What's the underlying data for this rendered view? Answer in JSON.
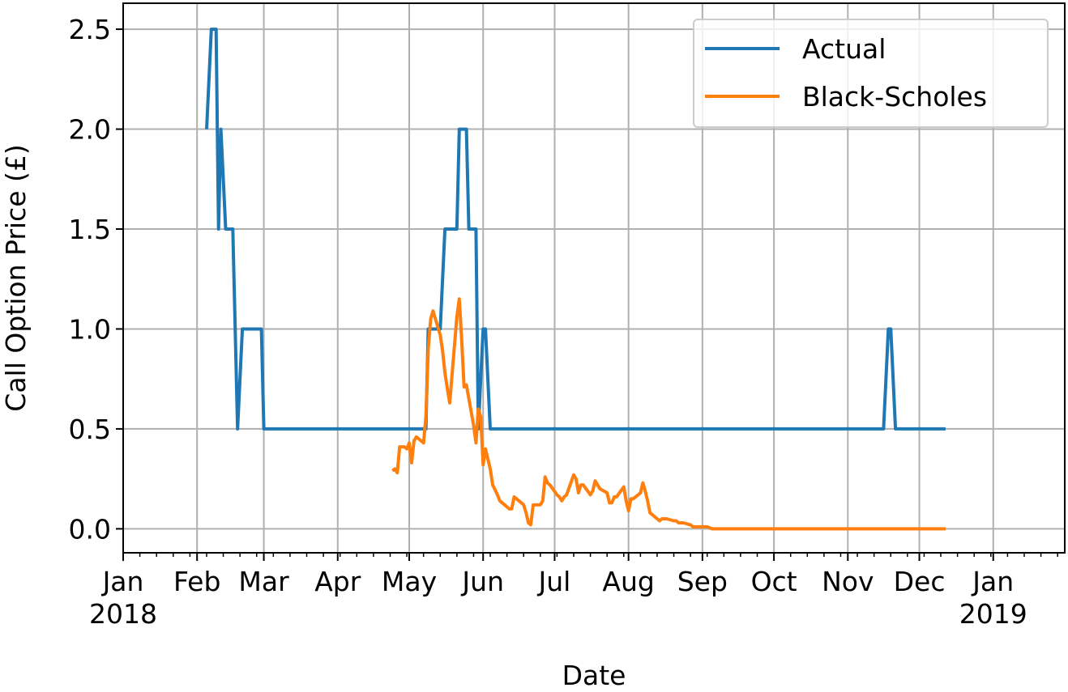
{
  "chart_data": {
    "type": "line",
    "title": "",
    "xlabel": "Date",
    "ylabel": "Call Option Price (£)",
    "x_axis_kind": "date",
    "xlim": [
      "2018-01-01",
      "2019-01-31"
    ],
    "ylim": [
      -0.12,
      2.63
    ],
    "grid": true,
    "legend_position": "top-right",
    "x_tick_labels": [
      {
        "date": "2018-01-01",
        "label": "Jan\n2018"
      },
      {
        "date": "2018-02-01",
        "label": "Feb"
      },
      {
        "date": "2018-03-01",
        "label": "Mar"
      },
      {
        "date": "2018-04-01",
        "label": "Apr"
      },
      {
        "date": "2018-05-01",
        "label": "May"
      },
      {
        "date": "2018-06-01",
        "label": "Jun"
      },
      {
        "date": "2018-07-01",
        "label": "Jul"
      },
      {
        "date": "2018-08-01",
        "label": "Aug"
      },
      {
        "date": "2018-09-01",
        "label": "Sep"
      },
      {
        "date": "2018-10-01",
        "label": "Oct"
      },
      {
        "date": "2018-11-01",
        "label": "Nov"
      },
      {
        "date": "2018-12-01",
        "label": "Dec"
      },
      {
        "date": "2019-01-01",
        "label": "Jan\n2019"
      }
    ],
    "y_ticks": [
      {
        "value": 0.0,
        "label": "0.0"
      },
      {
        "value": 0.5,
        "label": "0.5"
      },
      {
        "value": 1.0,
        "label": "1.0"
      },
      {
        "value": 1.5,
        "label": "1.5"
      },
      {
        "value": 2.0,
        "label": "2.0"
      },
      {
        "value": 2.5,
        "label": "2.5"
      }
    ],
    "series": [
      {
        "name": "Actual",
        "color": "#1f77b4",
        "points": [
          [
            "2018-02-05",
            2.0
          ],
          [
            "2018-02-07",
            2.5
          ],
          [
            "2018-02-09",
            2.5
          ],
          [
            "2018-02-10",
            1.5
          ],
          [
            "2018-02-11",
            2.0
          ],
          [
            "2018-02-13",
            1.5
          ],
          [
            "2018-02-15",
            1.5
          ],
          [
            "2018-02-16",
            1.5
          ],
          [
            "2018-02-18",
            0.5
          ],
          [
            "2018-02-20",
            1.0
          ],
          [
            "2018-02-23",
            1.0
          ],
          [
            "2018-02-28",
            1.0
          ],
          [
            "2018-03-01",
            0.5
          ],
          [
            "2018-05-08",
            0.5
          ],
          [
            "2018-05-09",
            1.0
          ],
          [
            "2018-05-14",
            1.0
          ],
          [
            "2018-05-16",
            1.5
          ],
          [
            "2018-05-21",
            1.5
          ],
          [
            "2018-05-22",
            2.0
          ],
          [
            "2018-05-25",
            2.0
          ],
          [
            "2018-05-26",
            1.5
          ],
          [
            "2018-05-29",
            1.5
          ],
          [
            "2018-05-30",
            0.5
          ],
          [
            "2018-06-01",
            1.0
          ],
          [
            "2018-06-02",
            1.0
          ],
          [
            "2018-06-04",
            0.5
          ],
          [
            "2018-11-16",
            0.5
          ],
          [
            "2018-11-18",
            1.0
          ],
          [
            "2018-11-19",
            1.0
          ],
          [
            "2018-11-21",
            0.5
          ],
          [
            "2018-12-12",
            0.5
          ]
        ]
      },
      {
        "name": "Black-Scholes",
        "color": "#ff7f0e",
        "points": [
          [
            "2018-04-24",
            0.29
          ],
          [
            "2018-04-25",
            0.3
          ],
          [
            "2018-04-26",
            0.28
          ],
          [
            "2018-04-27",
            0.41
          ],
          [
            "2018-04-29",
            0.41
          ],
          [
            "2018-04-30",
            0.4
          ],
          [
            "2018-05-01",
            0.43
          ],
          [
            "2018-05-02",
            0.33
          ],
          [
            "2018-05-03",
            0.44
          ],
          [
            "2018-05-04",
            0.46
          ],
          [
            "2018-05-07",
            0.43
          ],
          [
            "2018-05-08",
            0.56
          ],
          [
            "2018-05-09",
            0.9
          ],
          [
            "2018-05-10",
            1.05
          ],
          [
            "2018-05-11",
            1.09
          ],
          [
            "2018-05-14",
            0.97
          ],
          [
            "2018-05-15",
            0.89
          ],
          [
            "2018-05-16",
            0.78
          ],
          [
            "2018-05-17",
            0.7
          ],
          [
            "2018-05-18",
            0.63
          ],
          [
            "2018-05-21",
            1.06
          ],
          [
            "2018-05-22",
            1.15
          ],
          [
            "2018-05-23",
            0.95
          ],
          [
            "2018-05-24",
            0.71
          ],
          [
            "2018-05-25",
            0.72
          ],
          [
            "2018-05-28",
            0.52
          ],
          [
            "2018-05-29",
            0.43
          ],
          [
            "2018-05-30",
            0.6
          ],
          [
            "2018-05-31",
            0.56
          ],
          [
            "2018-06-01",
            0.32
          ],
          [
            "2018-06-02",
            0.4
          ],
          [
            "2018-06-04",
            0.3
          ],
          [
            "2018-06-05",
            0.22
          ],
          [
            "2018-06-07",
            0.17
          ],
          [
            "2018-06-08",
            0.14
          ],
          [
            "2018-06-11",
            0.11
          ],
          [
            "2018-06-12",
            0.1
          ],
          [
            "2018-06-13",
            0.1
          ],
          [
            "2018-06-14",
            0.16
          ],
          [
            "2018-06-15",
            0.15
          ],
          [
            "2018-06-18",
            0.12
          ],
          [
            "2018-06-19",
            0.08
          ],
          [
            "2018-06-20",
            0.03
          ],
          [
            "2018-06-21",
            0.02
          ],
          [
            "2018-06-22",
            0.12
          ],
          [
            "2018-06-25",
            0.12
          ],
          [
            "2018-06-26",
            0.14
          ],
          [
            "2018-06-27",
            0.26
          ],
          [
            "2018-06-28",
            0.23
          ],
          [
            "2018-06-29",
            0.22
          ],
          [
            "2018-07-02",
            0.17
          ],
          [
            "2018-07-03",
            0.16
          ],
          [
            "2018-07-04",
            0.14
          ],
          [
            "2018-07-05",
            0.16
          ],
          [
            "2018-07-06",
            0.17
          ],
          [
            "2018-07-09",
            0.27
          ],
          [
            "2018-07-10",
            0.25
          ],
          [
            "2018-07-11",
            0.18
          ],
          [
            "2018-07-12",
            0.22
          ],
          [
            "2018-07-13",
            0.22
          ],
          [
            "2018-07-16",
            0.17
          ],
          [
            "2018-07-17",
            0.19
          ],
          [
            "2018-07-18",
            0.24
          ],
          [
            "2018-07-19",
            0.22
          ],
          [
            "2018-07-20",
            0.2
          ],
          [
            "2018-07-23",
            0.18
          ],
          [
            "2018-07-24",
            0.13
          ],
          [
            "2018-07-25",
            0.13
          ],
          [
            "2018-07-26",
            0.16
          ],
          [
            "2018-07-27",
            0.16
          ],
          [
            "2018-07-30",
            0.21
          ],
          [
            "2018-07-31",
            0.14
          ],
          [
            "2018-08-01",
            0.09
          ],
          [
            "2018-08-02",
            0.15
          ],
          [
            "2018-08-03",
            0.15
          ],
          [
            "2018-08-06",
            0.18
          ],
          [
            "2018-08-07",
            0.23
          ],
          [
            "2018-08-08",
            0.19
          ],
          [
            "2018-08-09",
            0.14
          ],
          [
            "2018-08-10",
            0.08
          ],
          [
            "2018-08-13",
            0.05
          ],
          [
            "2018-08-14",
            0.04
          ],
          [
            "2018-08-15",
            0.05
          ],
          [
            "2018-08-16",
            0.05
          ],
          [
            "2018-08-17",
            0.05
          ],
          [
            "2018-08-20",
            0.04
          ],
          [
            "2018-08-21",
            0.04
          ],
          [
            "2018-08-22",
            0.03
          ],
          [
            "2018-08-23",
            0.03
          ],
          [
            "2018-08-24",
            0.03
          ],
          [
            "2018-08-27",
            0.02
          ],
          [
            "2018-08-28",
            0.01
          ],
          [
            "2018-08-29",
            0.01
          ],
          [
            "2018-08-30",
            0.01
          ],
          [
            "2018-08-31",
            0.01
          ],
          [
            "2018-09-03",
            0.01
          ],
          [
            "2018-09-05",
            0.0
          ],
          [
            "2018-12-12",
            0.0
          ]
        ]
      }
    ]
  }
}
